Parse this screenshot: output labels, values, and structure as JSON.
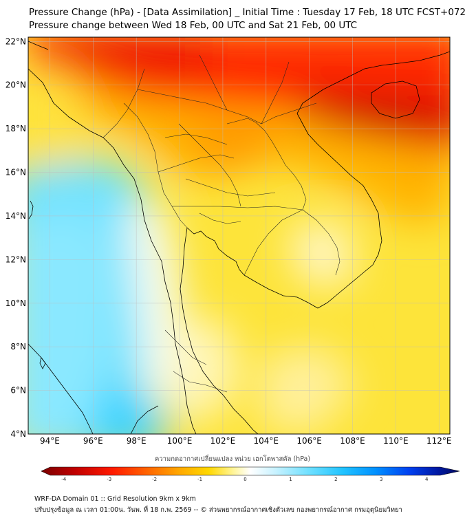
{
  "title_line1": "Pressure Change (hPa) - [Data Assimilation] _ Initial Time : Tuesday 17 Feb, 18 UTC FCST+072",
  "title_line2": "Pressure change between Wed 18 Feb, 00 UTC and Sat 21 Feb, 00 UTC",
  "map": {
    "lat_labels": [
      "22°N",
      "20°N",
      "18°N",
      "16°N",
      "14°N",
      "12°N",
      "10°N",
      "8°N",
      "6°N",
      "4°N"
    ],
    "lat_values": [
      22,
      20,
      18,
      16,
      14,
      12,
      10,
      8,
      6,
      4
    ],
    "lon_labels": [
      "94°E",
      "96°E",
      "98°E",
      "100°E",
      "102°E",
      "104°E",
      "106°E",
      "108°E",
      "110°E",
      "112°E"
    ],
    "lon_values": [
      94,
      96,
      98,
      100,
      102,
      104,
      106,
      108,
      110,
      112
    ],
    "lat_range": [
      4,
      22.2
    ],
    "lon_range": [
      93,
      112.5
    ]
  },
  "colorbar": {
    "title": "ความกดอากาศเปลี่ยนแปลง หน่วย เฮกโตพาสคัล (hPa)",
    "ticks": [
      "-4",
      "-3",
      "-2",
      "-1",
      "0",
      "1",
      "2",
      "3",
      "4"
    ],
    "tick_values": [
      -4,
      -3,
      -2,
      -1,
      0,
      1,
      2,
      3,
      4
    ],
    "range": [
      -4.3,
      4.3
    ],
    "colors": [
      "#7a0000",
      "#b30000",
      "#e00000",
      "#ff2a00",
      "#ff6a00",
      "#ff9800",
      "#ffc400",
      "#ffe14a",
      "#fff59a",
      "#ffffff",
      "#c8f2ff",
      "#7fe3ff",
      "#35cfff",
      "#00a9ff",
      "#0072ff",
      "#0033e0",
      "#001a9e",
      "#000a5e"
    ]
  },
  "footer_line1": "WRF-DA Domain 01 :: Grid Resolution 9km x 9km",
  "footer_line2": "ปรับปรุงข้อมูล ณ เวลา 01:00น. วันพ. ที่ 18 ก.พ. 2569 -- © ส่วนพยากรณ์อากาศเชิงตัวเลข กองพยากรณ์อากาศ กรมอุตุนิยมวิทยา"
}
